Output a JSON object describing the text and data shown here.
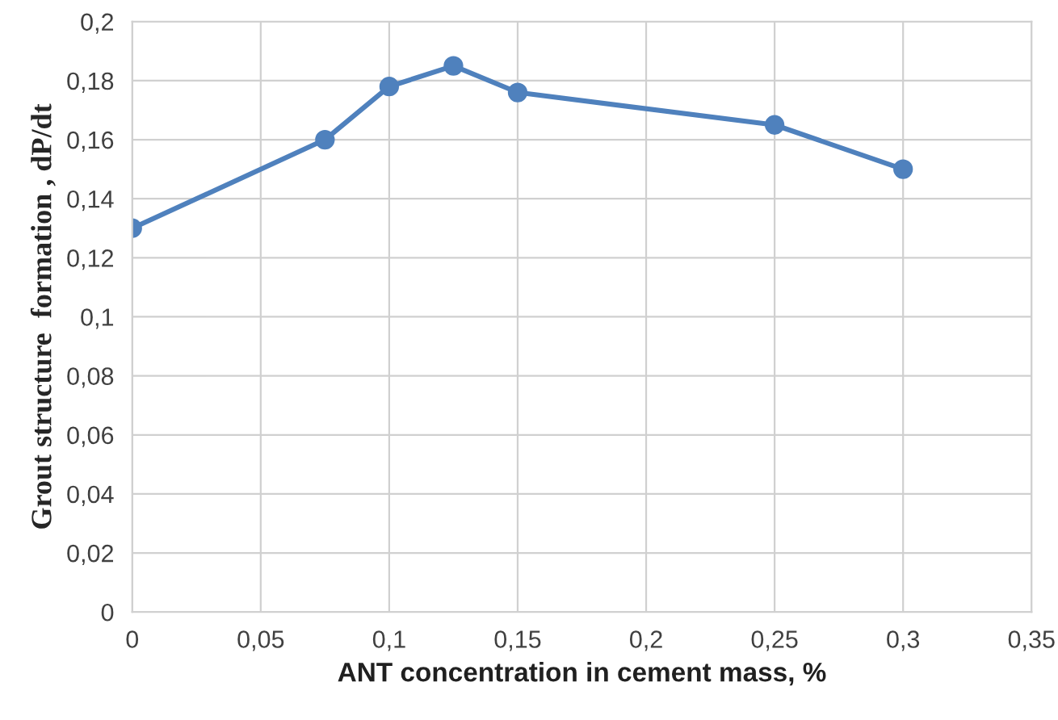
{
  "chart_data": {
    "type": "line",
    "xlabel": "ANT concentration in cement mass, %",
    "ylabel": "Grout structure  formation , dP/dt",
    "x": [
      0,
      0.075,
      0.1,
      0.125,
      0.15,
      0.25,
      0.3
    ],
    "series": [
      {
        "color": "#4f81bd",
        "values": [
          0.13,
          0.16,
          0.178,
          0.185,
          0.176,
          0.165,
          0.15
        ]
      }
    ],
    "xlim": [
      0,
      0.35
    ],
    "xticks": [
      0,
      {
        "value": 0.05,
        "label": "0,05"
      },
      {
        "value": 0.1,
        "label": "0,1"
      },
      {
        "value": 0.15,
        "label": "0,15"
      },
      {
        "value": 0.2,
        "label": "0,2"
      },
      {
        "value": 0.25,
        "label": "0,25"
      },
      {
        "value": 0.3,
        "label": "0,3"
      },
      {
        "value": 0.35,
        "label": "0,35"
      }
    ],
    "ylim": [
      0,
      0.2
    ],
    "yticks": [
      0,
      {
        "value": 0.02,
        "label": "0,02"
      },
      {
        "value": 0.04,
        "label": "0,04"
      },
      {
        "value": 0.06,
        "label": "0,06"
      },
      {
        "value": 0.08,
        "label": "0,08"
      },
      {
        "value": 0.1,
        "label": "0,1"
      },
      {
        "value": 0.12,
        "label": "0,12"
      },
      {
        "value": 0.14,
        "label": "0,14"
      },
      {
        "value": 0.16,
        "label": "0,16"
      },
      {
        "value": 0.18,
        "label": "0,18"
      },
      {
        "value": 0.2,
        "label": "0,2"
      }
    ],
    "grid": true,
    "marker": "circle",
    "line_style": "solid"
  }
}
